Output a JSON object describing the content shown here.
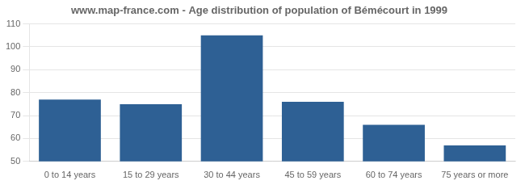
{
  "chart_data": {
    "type": "bar",
    "title": "www.map-france.com - Age distribution of population of Bémécourt in 1999",
    "categories": [
      "0 to 14 years",
      "15 to 29 years",
      "30 to 44 years",
      "45 to 59 years",
      "60 to 74 years",
      "75 years or more"
    ],
    "values": [
      77,
      75,
      105,
      76,
      66,
      57
    ],
    "color": "#2e6094",
    "ylim": [
      50,
      110
    ],
    "yticks": [
      50,
      60,
      70,
      80,
      90,
      100,
      110
    ],
    "grid": true
  }
}
